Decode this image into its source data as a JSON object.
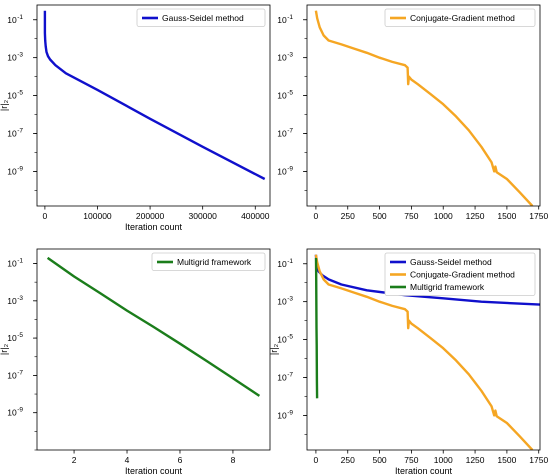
{
  "chart_data": [
    {
      "type": "line",
      "xlabel": "Iteration count",
      "ylabel": "|r|₂",
      "yscale": "log",
      "xlim": [
        -15000,
        428000
      ],
      "ylim": [
        1.5e-11,
        0.6
      ],
      "xticks": [
        0,
        100000,
        200000,
        300000,
        400000
      ],
      "xtick_labels": [
        "0",
        "100000",
        "200000",
        "300000",
        "400000"
      ],
      "yticks_exp": [
        -1,
        -3,
        -5,
        -7,
        -9
      ],
      "legend": "top-right",
      "grid": false,
      "series": [
        {
          "name": "Gauss-Seidel method",
          "color": "#1010cc",
          "x": [
            0,
            100,
            500,
            1500,
            3000,
            6000,
            10000,
            20000,
            40000,
            100000,
            200000,
            300000,
            418000
          ],
          "y": [
            0.3,
            0.02,
            0.008,
            0.004,
            0.002,
            0.0012,
            0.0008,
            0.0004,
            0.00015,
            2e-05,
            6e-07,
            2e-08,
            4e-10
          ]
        }
      ]
    },
    {
      "type": "line",
      "xlabel": "",
      "ylabel": "",
      "yscale": "log",
      "xlim": [
        -70,
        1760
      ],
      "ylim": [
        1.5e-11,
        0.6
      ],
      "xticks": [
        0,
        250,
        500,
        750,
        1000,
        1250,
        1500,
        1750
      ],
      "xtick_labels": [
        "0",
        "250",
        "500",
        "750",
        "1000",
        "1250",
        "1500",
        "1750"
      ],
      "yticks_exp": [
        -1,
        -3,
        -5,
        -7,
        -9
      ],
      "legend": "top-right",
      "grid": false,
      "series": [
        {
          "name": "Conjugate-Gradient method",
          "color": "#f5a623",
          "x": [
            0,
            10,
            30,
            60,
            100,
            200,
            300,
            400,
            500,
            600,
            700,
            720,
            725,
            730,
            750,
            800,
            900,
            1000,
            1100,
            1200,
            1300,
            1380,
            1400,
            1410,
            1420,
            1500,
            1600,
            1700
          ],
          "y": [
            0.3,
            0.12,
            0.04,
            0.015,
            0.008,
            0.005,
            0.003,
            0.0018,
            0.001,
            0.0006,
            0.0004,
            0.0003,
            4e-05,
            0.0001,
            7e-05,
            4e-05,
            1.2e-05,
            3.5e-06,
            8e-07,
            1.5e-07,
            2e-08,
            3e-09,
            1e-09,
            1.8e-09,
            9e-10,
            4e-10,
            8e-11,
            1.5e-11
          ]
        }
      ]
    },
    {
      "type": "line",
      "xlabel": "Iteration count",
      "ylabel": "|r|₂",
      "yscale": "log",
      "xlim": [
        0.6,
        9.4
      ],
      "ylim": [
        1e-11,
        0.6
      ],
      "xticks": [
        2,
        4,
        6,
        8
      ],
      "xtick_labels": [
        "2",
        "4",
        "6",
        "8"
      ],
      "yticks_exp": [
        -1,
        -3,
        -5,
        -7,
        -9
      ],
      "legend": "top-right",
      "grid": false,
      "series": [
        {
          "name": "Multigrid framework",
          "color": "#1b7d1b",
          "x": [
            1,
            2,
            3,
            4,
            5,
            6,
            7,
            8,
            9
          ],
          "y": [
            0.2,
            0.02,
            0.0025,
            0.0003,
            4e-05,
            5e-06,
            6e-07,
            7e-08,
            8e-09
          ]
        }
      ]
    },
    {
      "type": "line",
      "xlabel": "Iteration count",
      "ylabel": "|r|₂",
      "yscale": "log",
      "xlim": [
        -70,
        1760
      ],
      "ylim": [
        1.5e-11,
        0.6
      ],
      "xticks": [
        0,
        250,
        500,
        750,
        1000,
        1250,
        1500,
        1750
      ],
      "xtick_labels": [
        "0",
        "250",
        "500",
        "750",
        "1000",
        "1250",
        "1500",
        "1750"
      ],
      "yticks_exp": [
        -1,
        -3,
        -5,
        -7,
        -9
      ],
      "legend": "top-right",
      "grid": false,
      "series": [
        {
          "name": "Gauss-Seidel method",
          "color": "#1010cc",
          "x": [
            0,
            3,
            8,
            20,
            50,
            100,
            200,
            400,
            700,
            1000,
            1300,
            1760
          ],
          "y": [
            0.3,
            0.15,
            0.07,
            0.04,
            0.025,
            0.015,
            0.008,
            0.004,
            0.0022,
            0.0015,
            0.001,
            0.0007
          ]
        },
        {
          "name": "Conjugate-Gradient method",
          "color": "#f5a623",
          "x": [
            0,
            10,
            30,
            60,
            100,
            200,
            300,
            400,
            500,
            600,
            700,
            720,
            725,
            730,
            750,
            800,
            900,
            1000,
            1100,
            1200,
            1300,
            1380,
            1400,
            1410,
            1420,
            1500,
            1600,
            1700
          ],
          "y": [
            0.3,
            0.12,
            0.04,
            0.015,
            0.008,
            0.005,
            0.003,
            0.0018,
            0.001,
            0.0006,
            0.0004,
            0.0003,
            4e-05,
            0.0001,
            7e-05,
            4e-05,
            1.2e-05,
            3.5e-06,
            8e-07,
            1.5e-07,
            2e-08,
            3e-09,
            1e-09,
            1.8e-09,
            9e-10,
            4e-10,
            8e-11,
            1.5e-11
          ]
        },
        {
          "name": "Multigrid framework",
          "color": "#1b7d1b",
          "x": [
            1,
            2,
            3,
            4,
            5,
            6,
            7,
            8,
            9
          ],
          "y": [
            0.2,
            0.02,
            0.0025,
            0.0003,
            4e-05,
            5e-06,
            6e-07,
            7e-08,
            8e-09
          ]
        }
      ]
    }
  ]
}
